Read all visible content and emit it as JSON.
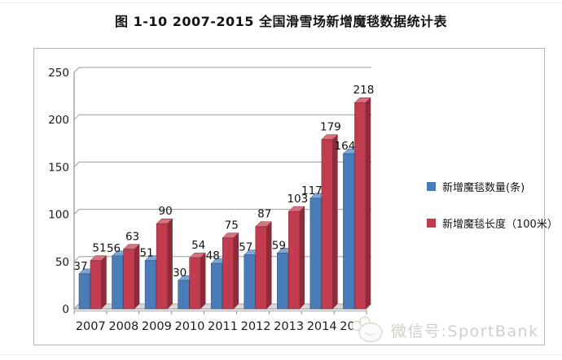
{
  "page": {
    "title": "图 1-10 2007-2015 全国滑雪场新增魔毯数据统计表"
  },
  "watermark": {
    "icon": "wechat-emoji-icon",
    "label": "微信号:SportBank"
  },
  "chart_data": {
    "type": "bar",
    "style": "3d-clustered-column",
    "title": "图 1-10 2007-2015 全国滑雪场新增魔毯数据统计表",
    "categories": [
      "2007",
      "2008",
      "2009",
      "2010",
      "2011",
      "2012",
      "2013",
      "2014",
      "2015"
    ],
    "series": [
      {
        "name": "新增魔毯数量(条)",
        "color": "#4A7CB8",
        "color_dark": "#2C5585",
        "color_light": "#7FA7D6",
        "values": [
          37,
          56,
          51,
          30,
          48,
          57,
          59,
          117,
          164
        ]
      },
      {
        "name": "新增魔毯长度（100米）",
        "color": "#C23C4F",
        "color_dark": "#8C2B3A",
        "color_light": "#D4727E",
        "values": [
          51,
          63,
          90,
          54,
          75,
          87,
          103,
          179,
          218
        ]
      }
    ],
    "ylim": [
      0,
      250
    ],
    "yticks": [
      0,
      50,
      100,
      150,
      200,
      250
    ],
    "grid": true,
    "data_labels": true,
    "legend_position": "right",
    "axis_color": "#8f8f8f",
    "grid_color": "#9a9a9a"
  }
}
